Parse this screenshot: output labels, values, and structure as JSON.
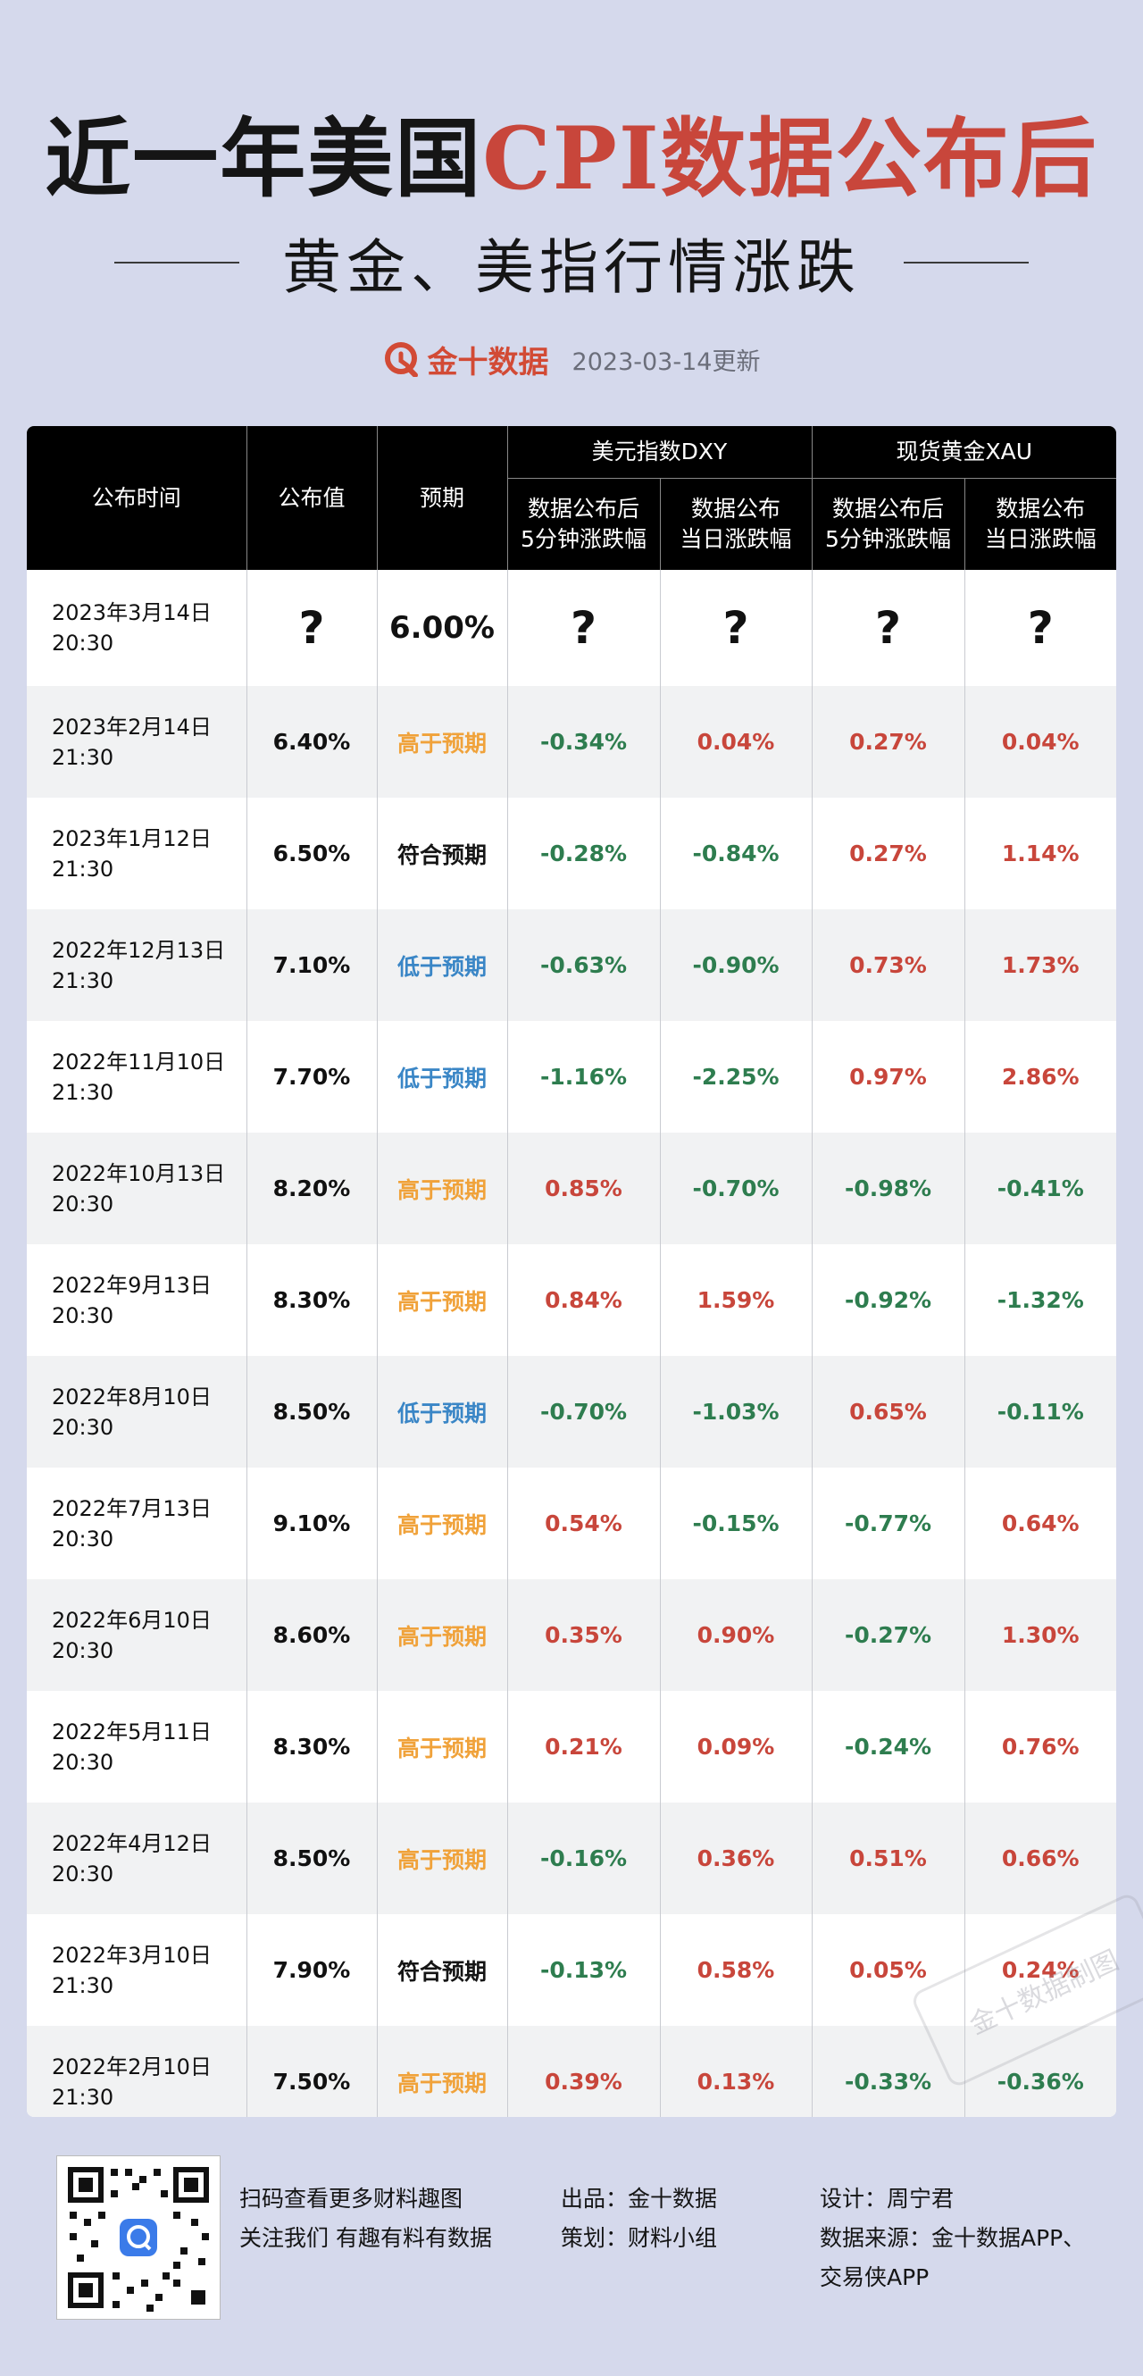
{
  "header": {
    "title_black": "近一年美国",
    "title_red": "CPI数据公布后",
    "subtitle": "黄金、美指行情涨跌",
    "brand_name": "金十数据",
    "update_date": "2023-03-14更新"
  },
  "table": {
    "col_time": "公布时间",
    "col_value": "公布值",
    "col_expect": "预期",
    "group_dxy": "美元指数DXY",
    "group_xau": "现货黄金XAU",
    "sub_5min_1": "数据公布后",
    "sub_5min_2": "5分钟涨跌幅",
    "sub_day_1": "数据公布",
    "sub_day_2": "当日涨跌幅",
    "rows": [
      {
        "date": "2023年3月14日",
        "time": "20:30",
        "value": "?",
        "expect": "6.00%",
        "dxy5": "?",
        "dxyday": "?",
        "xau5": "?",
        "xauday": "?"
      },
      {
        "date": "2023年2月14日",
        "time": "21:30",
        "value": "6.40%",
        "expect": "高于预期",
        "dxy5": "-0.34%",
        "dxyday": "0.04%",
        "xau5": "0.27%",
        "xauday": "0.04%"
      },
      {
        "date": "2023年1月12日",
        "time": "21:30",
        "value": "6.50%",
        "expect": "符合预期",
        "dxy5": "-0.28%",
        "dxyday": "-0.84%",
        "xau5": "0.27%",
        "xauday": "1.14%"
      },
      {
        "date": "2022年12月13日",
        "time": "21:30",
        "value": "7.10%",
        "expect": "低于预期",
        "dxy5": "-0.63%",
        "dxyday": "-0.90%",
        "xau5": "0.73%",
        "xauday": "1.73%"
      },
      {
        "date": "2022年11月10日",
        "time": "21:30",
        "value": "7.70%",
        "expect": "低于预期",
        "dxy5": "-1.16%",
        "dxyday": "-2.25%",
        "xau5": "0.97%",
        "xauday": "2.86%"
      },
      {
        "date": "2022年10月13日",
        "time": "20:30",
        "value": "8.20%",
        "expect": "高于预期",
        "dxy5": "0.85%",
        "dxyday": "-0.70%",
        "xau5": "-0.98%",
        "xauday": "-0.41%"
      },
      {
        "date": "2022年9月13日",
        "time": "20:30",
        "value": "8.30%",
        "expect": "高于预期",
        "dxy5": "0.84%",
        "dxyday": "1.59%",
        "xau5": "-0.92%",
        "xauday": "-1.32%"
      },
      {
        "date": "2022年8月10日",
        "time": "20:30",
        "value": "8.50%",
        "expect": "低于预期",
        "dxy5": "-0.70%",
        "dxyday": "-1.03%",
        "xau5": "0.65%",
        "xauday": "-0.11%"
      },
      {
        "date": "2022年7月13日",
        "time": "20:30",
        "value": "9.10%",
        "expect": "高于预期",
        "dxy5": "0.54%",
        "dxyday": "-0.15%",
        "xau5": "-0.77%",
        "xauday": "0.64%"
      },
      {
        "date": "2022年6月10日",
        "time": "20:30",
        "value": "8.60%",
        "expect": "高于预期",
        "dxy5": "0.35%",
        "dxyday": "0.90%",
        "xau5": "-0.27%",
        "xauday": "1.30%"
      },
      {
        "date": "2022年5月11日",
        "time": "20:30",
        "value": "8.30%",
        "expect": "高于预期",
        "dxy5": "0.21%",
        "dxyday": "0.09%",
        "xau5": "-0.24%",
        "xauday": "0.76%"
      },
      {
        "date": "2022年4月12日",
        "time": "20:30",
        "value": "8.50%",
        "expect": "高于预期",
        "dxy5": "-0.16%",
        "dxyday": "0.36%",
        "xau5": "0.51%",
        "xauday": "0.66%"
      },
      {
        "date": "2022年3月10日",
        "time": "21:30",
        "value": "7.90%",
        "expect": "符合预期",
        "dxy5": "-0.13%",
        "dxyday": "0.58%",
        "xau5": "0.05%",
        "xauday": "0.24%"
      },
      {
        "date": "2022年2月10日",
        "time": "21:30",
        "value": "7.50%",
        "expect": "高于预期",
        "dxy5": "0.39%",
        "dxyday": "0.13%",
        "xau5": "-0.33%",
        "xauday": "-0.36%"
      }
    ]
  },
  "footer": {
    "qr_line1": "扫码查看更多财料趣图",
    "qr_line2": "关注我们 有趣有料有数据",
    "produced": "出品：金十数据",
    "planned": "策划：财料小组",
    "design": "设计：周宁君",
    "source_line1": "数据来源：金十数据APP、",
    "source_line2": "交易侠APP"
  },
  "watermark": "金十数据",
  "stamp": "金十数据制图",
  "colors": {
    "background": "#d5d9ec",
    "title_red": "#c8463b",
    "positive": "#c8463b",
    "negative": "#2e7d4f",
    "above_expectation": "#f0a23a",
    "below_expectation": "#3a86c6",
    "header_bg": "#000000"
  }
}
